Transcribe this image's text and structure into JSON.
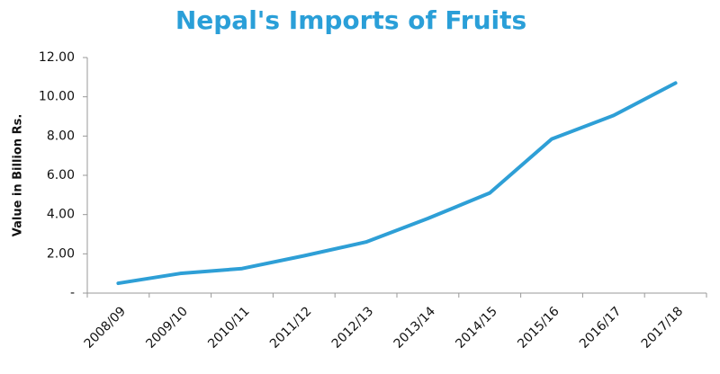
{
  "chart_data": {
    "type": "line",
    "title": "Nepal's Imports of Fruits",
    "y_label": "Value in Billion Rs.",
    "categories": [
      "2008/09",
      "2009/10",
      "2010/11",
      "2011/12",
      "2012/13",
      "2013/14",
      "2014/15",
      "2015/16",
      "2016/17",
      "2017/18"
    ],
    "values": [
      0.5,
      1.0,
      1.25,
      1.9,
      2.6,
      3.8,
      5.1,
      7.85,
      9.05,
      10.7
    ],
    "color": "#2e9fd6",
    "ylim": [
      0,
      12
    ],
    "yticks": [
      {
        "value": 0,
        "label": "-"
      },
      {
        "value": 2,
        "label": "2.00"
      },
      {
        "value": 4,
        "label": "4.00"
      },
      {
        "value": 6,
        "label": "6.00"
      },
      {
        "value": 8,
        "label": "8.00"
      },
      {
        "value": 10,
        "label": "10.00"
      },
      {
        "value": 12,
        "label": "12.00"
      }
    ],
    "grid": false
  }
}
